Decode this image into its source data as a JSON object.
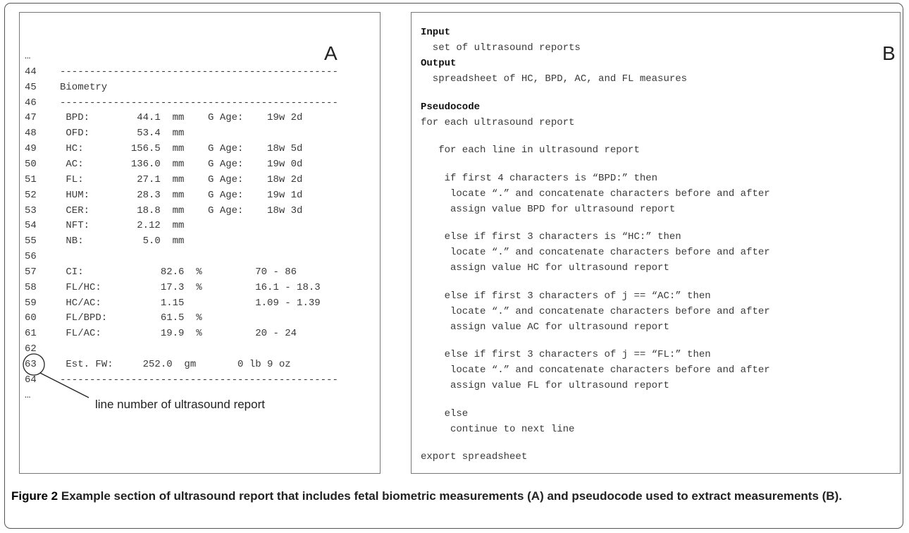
{
  "panel_a": {
    "label": "A",
    "lines": [
      {
        "text": "…"
      },
      {
        "num": "44",
        "text": "-----------------------------------------------"
      },
      {
        "num": "45",
        "text": "Biometry"
      },
      {
        "num": "46",
        "text": "-----------------------------------------------"
      },
      {
        "num": "47",
        "text": " BPD:        44.1  mm    G Age:    19w 2d"
      },
      {
        "num": "48",
        "text": " OFD:        53.4  mm"
      },
      {
        "num": "49",
        "text": " HC:        156.5  mm    G Age:    18w 5d"
      },
      {
        "num": "50",
        "text": " AC:        136.0  mm    G Age:    19w 0d"
      },
      {
        "num": "51",
        "text": " FL:         27.1  mm    G Age:    18w 2d"
      },
      {
        "num": "52",
        "text": " HUM:        28.3  mm    G Age:    19w 1d"
      },
      {
        "num": "53",
        "text": " CER:        18.8  mm    G Age:    18w 3d"
      },
      {
        "num": "54",
        "text": " NFT:        2.12  mm"
      },
      {
        "num": "55",
        "text": " NB:          5.0  mm"
      },
      {
        "num": "56"
      },
      {
        "num": "57",
        "text": " CI:             82.6  %         70 - 86"
      },
      {
        "num": "58",
        "text": " FL/HC:          17.3  %         16.1 - 18.3"
      },
      {
        "num": "59",
        "text": " HC/AC:          1.15            1.09 - 1.39"
      },
      {
        "num": "60",
        "text": " FL/BPD:         61.5  %"
      },
      {
        "num": "61",
        "text": " FL/AC:          19.9  %         20 - 24"
      },
      {
        "num": "62"
      },
      {
        "num": "63",
        "text": " Est. FW:     252.0  gm       0 lb 9 oz"
      },
      {
        "num": "64",
        "text": "-----------------------------------------------"
      },
      {
        "text": "…"
      }
    ],
    "annotation": "line number of ultrasound report"
  },
  "panel_b": {
    "label": "B",
    "lines": [
      {
        "text": "Input",
        "bold": true
      },
      {
        "text": "  set of ultrasound reports"
      },
      {
        "text": "Output",
        "bold": true
      },
      {
        "text": "  spreadsheet of HC, BPD, AC, and FL measures"
      },
      null,
      {
        "text": "Pseudocode",
        "bold": true
      },
      {
        "text": "for each ultrasound report"
      },
      null,
      {
        "text": "   for each line in ultrasound report"
      },
      null,
      {
        "text": "    if first 4 characters is “BPD:” then"
      },
      {
        "text": "     locate “.” and concatenate characters before and after"
      },
      {
        "text": "     assign value BPD for ultrasound report"
      },
      null,
      {
        "text": "    else if first 3 characters is “HC:” then"
      },
      {
        "text": "     locate “.” and concatenate characters before and after"
      },
      {
        "text": "     assign value HC for ultrasound report"
      },
      null,
      {
        "text": "    else if first 3 characters of j == “AC:” then"
      },
      {
        "text": "     locate “.” and concatenate characters before and after"
      },
      {
        "text": "     assign value AC for ultrasound report"
      },
      null,
      {
        "text": "    else if first 3 characters of j == “FL:” then"
      },
      {
        "text": "     locate “.” and concatenate characters before and after"
      },
      {
        "text": "     assign value FL for ultrasound report"
      },
      null,
      {
        "text": "    else"
      },
      {
        "text": "     continue to next line"
      },
      null,
      {
        "text": "export spreadsheet"
      }
    ]
  },
  "caption": {
    "label": "Figure 2",
    "text": "Example section of ultrasound report that includes fetal biometric measurements (A) and pseudocode used to extract measurements (B)."
  }
}
